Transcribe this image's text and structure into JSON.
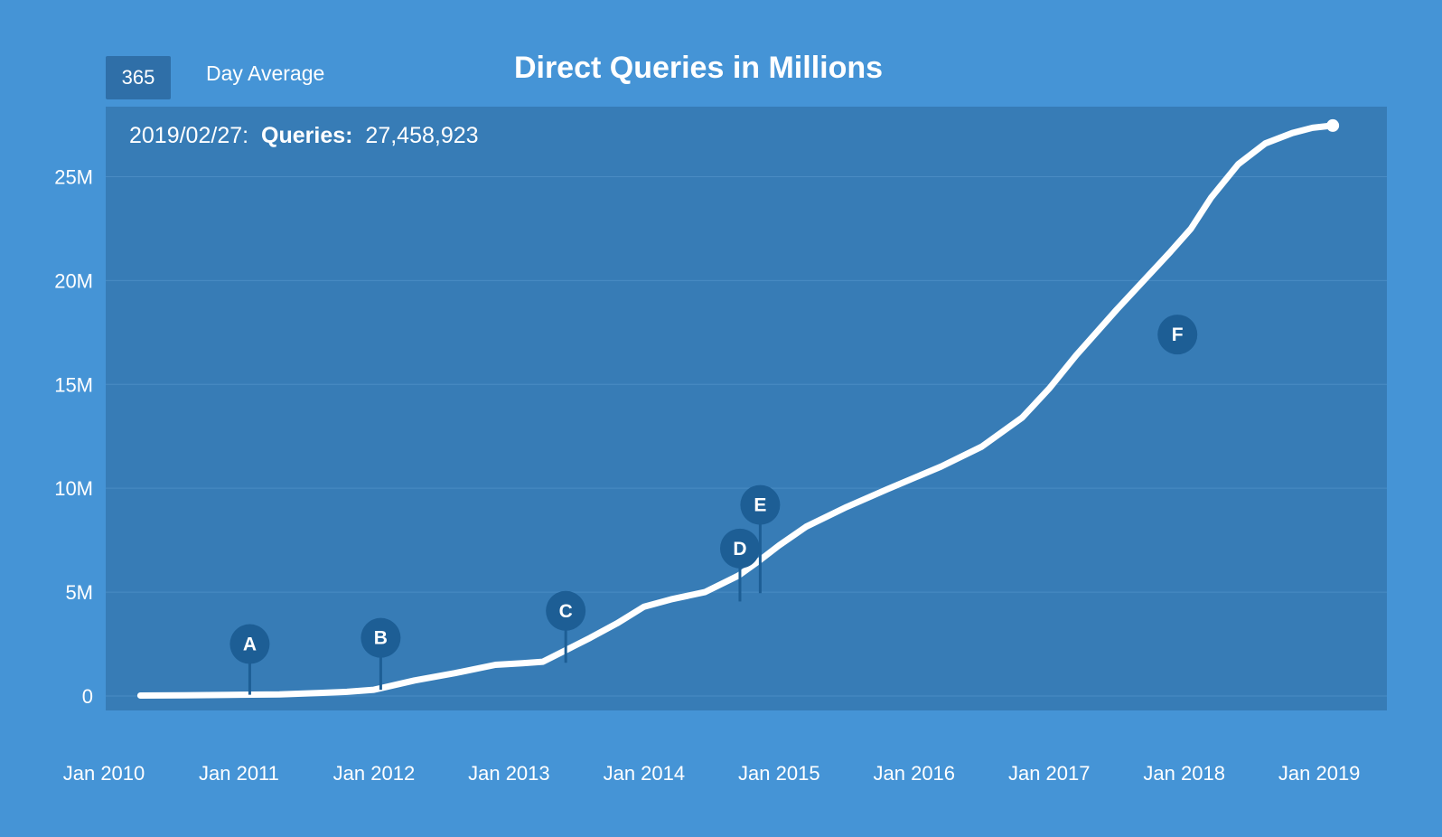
{
  "controls": {
    "period_value": "365",
    "period_label": "Day Average"
  },
  "chart_data": {
    "type": "line",
    "title": "Direct Queries in Millions",
    "readout": {
      "date": "2019/02/27:",
      "label": "Queries:",
      "value": "27,458,923"
    },
    "xlabel": "",
    "ylabel": "",
    "x_tick_labels": [
      "Jan 2010",
      "Jan 2011",
      "Jan 2012",
      "Jan 2013",
      "Jan 2014",
      "Jan 2015",
      "Jan 2016",
      "Jan 2017",
      "Jan 2018",
      "Jan 2019"
    ],
    "y_ticks": [
      0,
      5,
      10,
      15,
      20,
      25
    ],
    "y_tick_labels": [
      "0",
      "5M",
      "10M",
      "15M",
      "20M",
      "25M"
    ],
    "xlim": [
      2010.0,
      2019.3
    ],
    "ylim": [
      0,
      27.5
    ],
    "grid": true,
    "colors": {
      "background": "#4594d6",
      "plot_background": "#377cb6",
      "line": "#ffffff",
      "marker": "#1d5e95"
    },
    "series": [
      {
        "name": "Queries",
        "unit": "millions",
        "x": [
          2010.27,
          2010.6,
          2011.0,
          2011.3,
          2011.6,
          2011.8,
          2012.0,
          2012.1,
          2012.3,
          2012.6,
          2012.9,
          2013.1,
          2013.25,
          2013.45,
          2013.6,
          2013.8,
          2014.0,
          2014.2,
          2014.45,
          2014.7,
          2014.85,
          2015.0,
          2015.2,
          2015.5,
          2015.8,
          2016.0,
          2016.2,
          2016.5,
          2016.8,
          2017.0,
          2017.2,
          2017.5,
          2017.7,
          2017.9,
          2018.05,
          2018.2,
          2018.4,
          2018.6,
          2018.8,
          2018.95,
          2019.1
        ],
        "values": [
          0.02,
          0.03,
          0.06,
          0.08,
          0.15,
          0.2,
          0.3,
          0.45,
          0.75,
          1.1,
          1.5,
          1.58,
          1.65,
          2.3,
          2.8,
          3.5,
          4.3,
          4.65,
          5.0,
          5.8,
          6.5,
          7.25,
          8.15,
          9.1,
          9.95,
          10.5,
          11.05,
          12.0,
          13.4,
          14.8,
          16.4,
          18.6,
          20.0,
          21.4,
          22.5,
          24.0,
          25.6,
          26.6,
          27.1,
          27.35,
          27.46
        ]
      }
    ],
    "annotations": [
      {
        "label": "A",
        "x": 2011.08,
        "y": 0.06,
        "marker_y": 2.5
      },
      {
        "label": "B",
        "x": 2012.05,
        "y": 0.3,
        "marker_y": 2.8
      },
      {
        "label": "C",
        "x": 2013.42,
        "y": 1.6,
        "marker_y": 4.1
      },
      {
        "label": "D",
        "x": 2014.71,
        "y": 4.55,
        "marker_y": 7.1
      },
      {
        "label": "E",
        "x": 2014.86,
        "y": 4.95,
        "marker_y": 9.2
      },
      {
        "label": "F",
        "x": 2017.95,
        "y": 17.4,
        "marker_y": 17.4
      }
    ]
  }
}
